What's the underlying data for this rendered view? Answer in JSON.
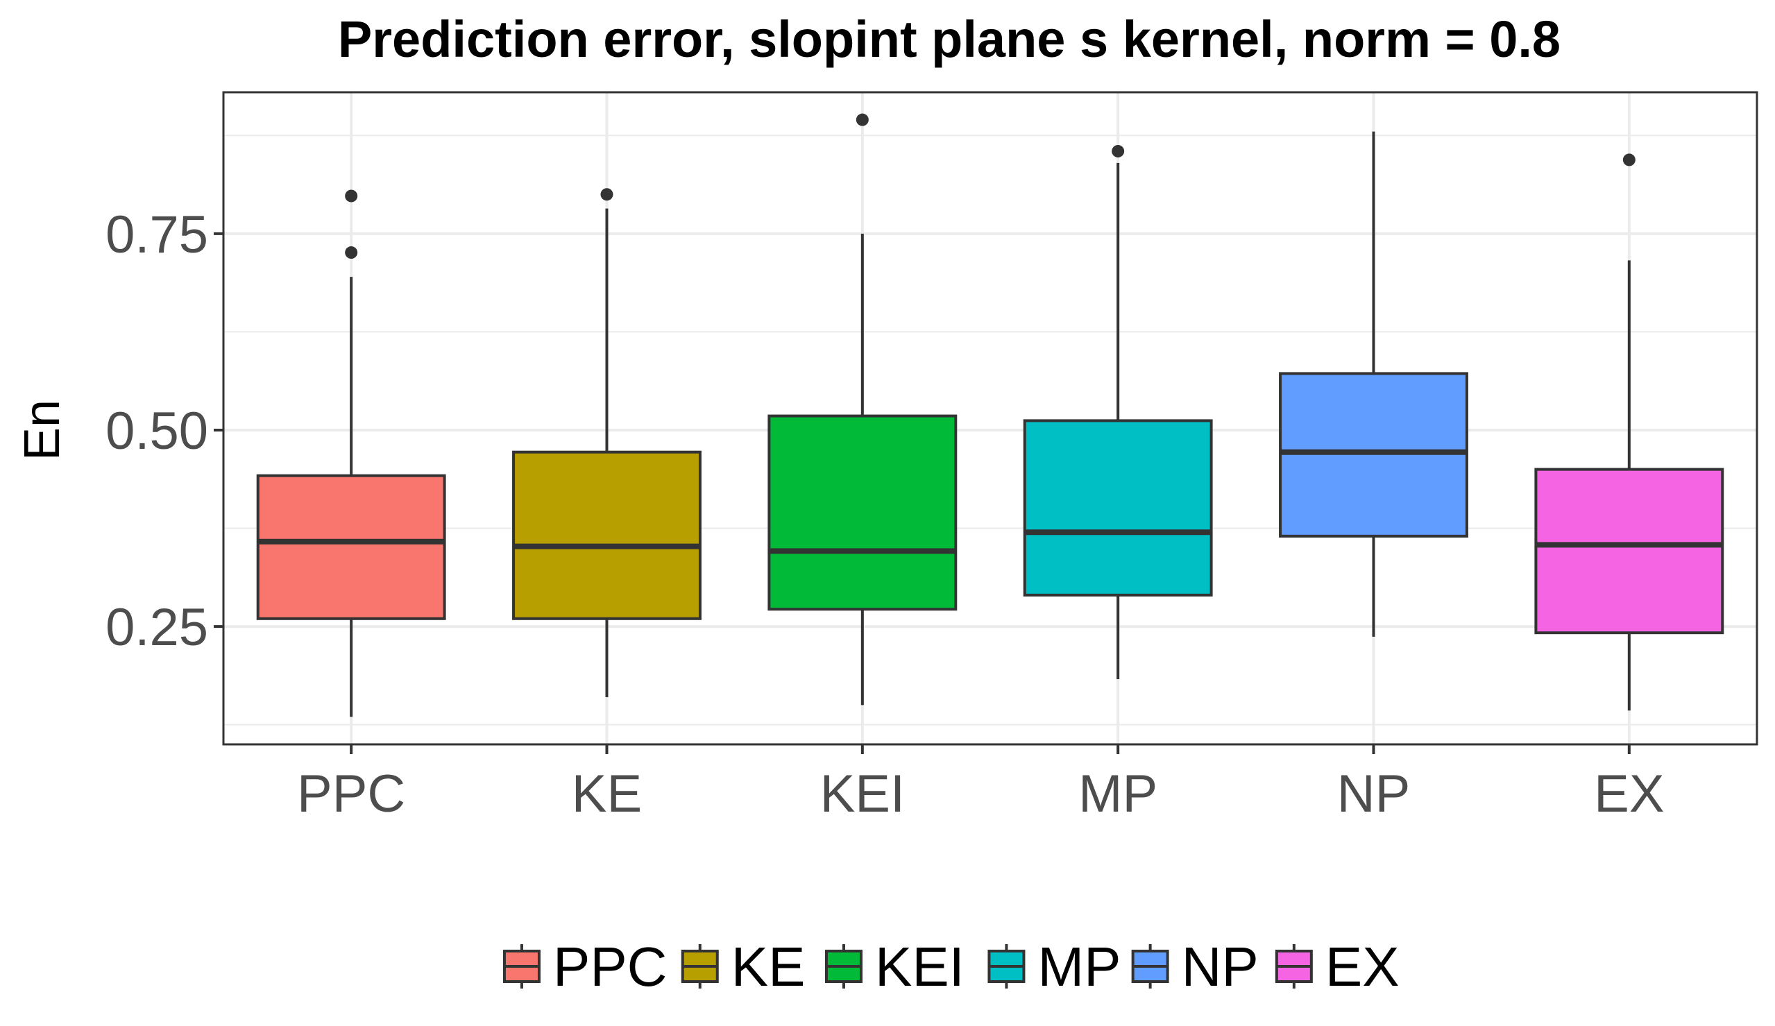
{
  "chart_data": {
    "type": "box",
    "title": "Prediction error, slopint plane s kernel, norm = 0.8",
    "xlabel": "",
    "ylabel": "En",
    "ylim": [
      0.1,
      0.93
    ],
    "yticks": [
      0.25,
      0.5,
      0.75
    ],
    "ytick_labels": [
      "0.25",
      "0.50",
      "0.75"
    ],
    "grid": true,
    "legend_position": "bottom",
    "categories": [
      "PPC",
      "KE",
      "KEI",
      "MP",
      "NP",
      "EX"
    ],
    "colors": [
      "#F8766D",
      "#B79F00",
      "#00BA38",
      "#00BFC4",
      "#619CFF",
      "#F564E3"
    ],
    "series": [
      {
        "name": "PPC",
        "whisker_low": 0.135,
        "q1": 0.26,
        "median": 0.358,
        "q3": 0.442,
        "whisker_high": 0.695,
        "outliers": [
          0.726,
          0.798
        ]
      },
      {
        "name": "KE",
        "whisker_low": 0.16,
        "q1": 0.26,
        "median": 0.352,
        "q3": 0.472,
        "whisker_high": 0.782,
        "outliers": [
          0.8
        ]
      },
      {
        "name": "KEI",
        "whisker_low": 0.15,
        "q1": 0.272,
        "median": 0.346,
        "q3": 0.518,
        "whisker_high": 0.75,
        "outliers": [
          0.895
        ]
      },
      {
        "name": "MP",
        "whisker_low": 0.183,
        "q1": 0.29,
        "median": 0.37,
        "q3": 0.512,
        "whisker_high": 0.84,
        "outliers": [
          0.855
        ]
      },
      {
        "name": "NP",
        "whisker_low": 0.237,
        "q1": 0.365,
        "median": 0.472,
        "q3": 0.572,
        "whisker_high": 0.88,
        "outliers": []
      },
      {
        "name": "EX",
        "whisker_low": 0.143,
        "q1": 0.242,
        "median": 0.354,
        "q3": 0.45,
        "whisker_high": 0.716,
        "outliers": [
          0.844
        ]
      }
    ]
  }
}
